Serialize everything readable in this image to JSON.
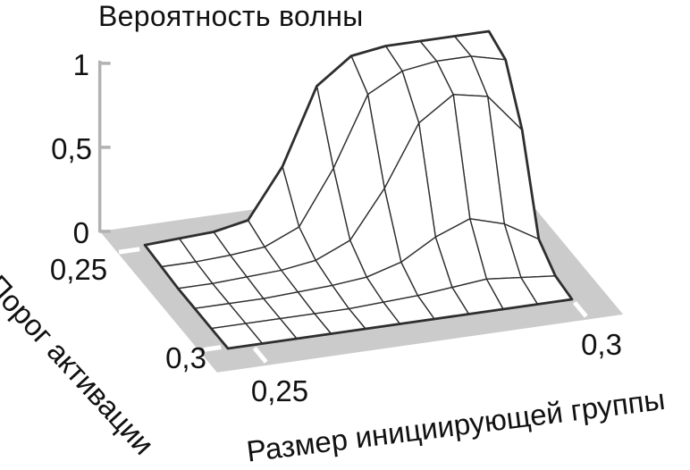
{
  "chart": {
    "title": "Вероятность волны",
    "x_axis": {
      "label": "Размер инициирующей группы",
      "tick_labels": [
        "0,25",
        "0,3"
      ]
    },
    "y_axis": {
      "label": "Порог активации",
      "tick_labels": [
        "0,25",
        "0,3"
      ]
    },
    "z_axis": {
      "tick_labels": [
        "0",
        "0,5",
        "1"
      ]
    }
  },
  "chart_data": {
    "type": "surface",
    "title": "Вероятность волны",
    "xlabel": "Размер инициирующей группы",
    "ylabel": "Порог активации",
    "zlabel": "Вероятность волны",
    "x_ticks": [
      0.25,
      0.3
    ],
    "y_ticks": [
      0.25,
      0.3
    ],
    "z_ticks": [
      0,
      0.5,
      1
    ],
    "zlim": [
      0,
      1
    ],
    "y_values": [
      0.25,
      0.26,
      0.27,
      0.28,
      0.29,
      0.3
    ],
    "x_columns": 11,
    "row_order": "y_values order: back row (0.25) first, front row (0.30) last",
    "z_matrix": [
      [
        0.02,
        0.03,
        0.04,
        0.08,
        0.37,
        0.82,
        0.97,
        1.0,
        1.0,
        1.0,
        1.0
      ],
      [
        0.01,
        0.01,
        0.02,
        0.04,
        0.13,
        0.45,
        0.86,
        0.97,
        1.0,
        1.0,
        0.95
      ],
      [
        0.0,
        0.0,
        0.01,
        0.02,
        0.05,
        0.14,
        0.42,
        0.78,
        0.92,
        0.88,
        0.65
      ],
      [
        0.0,
        0.0,
        0.0,
        0.01,
        0.02,
        0.04,
        0.1,
        0.22,
        0.3,
        0.24,
        0.12
      ],
      [
        0.0,
        0.0,
        0.0,
        0.0,
        0.0,
        0.01,
        0.02,
        0.04,
        0.06,
        0.04,
        0.02
      ],
      [
        0.0,
        0.0,
        0.0,
        0.0,
        0.0,
        0.0,
        0.0,
        0.0,
        0.0,
        0.0,
        0.0
      ]
    ]
  },
  "colors": {
    "mesh_stroke": "#2e2e2e",
    "mesh_fill": "#ffffff",
    "floor": "#cbcbcb",
    "axis": "#b2b2b2",
    "tick_notch": "#ffffff",
    "text": "#111111",
    "background": "#ffffff"
  }
}
